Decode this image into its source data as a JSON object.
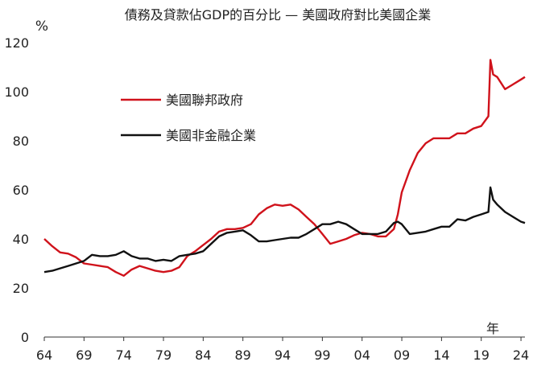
{
  "chart_data": {
    "type": "line",
    "title": "債務及貸款佔GDP的百分比 — 美國政府對比美國企業",
    "ylabel": "%",
    "xlabel": "年",
    "ylim": [
      0,
      120
    ],
    "xlim": [
      1964,
      2024.5
    ],
    "yticks": [
      "0",
      "20",
      "40",
      "60",
      "80",
      "100",
      "120"
    ],
    "yticks_values": [
      0,
      20,
      40,
      60,
      80,
      100,
      120
    ],
    "xticks": [
      "64",
      "69",
      "74",
      "79",
      "84",
      "89",
      "94",
      "99",
      "04",
      "09",
      "14",
      "19",
      "24"
    ],
    "xticks_values": [
      1964,
      1969,
      1974,
      1979,
      1984,
      1989,
      1994,
      1999,
      2004,
      2009,
      2014,
      2019,
      2024
    ],
    "grid": false,
    "legend_position": "upper-left",
    "series": [
      {
        "name": "美國聯邦政府",
        "color": "#d0121b",
        "x": [
          1964,
          1965,
          1966,
          1967,
          1968,
          1969,
          1970,
          1971,
          1972,
          1973,
          1974,
          1975,
          1976,
          1977,
          1978,
          1979,
          1980,
          1981,
          1982,
          1983,
          1984,
          1985,
          1986,
          1987,
          1988,
          1989,
          1990,
          1991,
          1992,
          1993,
          1994,
          1995,
          1996,
          1997,
          1998,
          1999,
          2000,
          2001,
          2002,
          2003,
          2004,
          2005,
          2006,
          2007,
          2008,
          2008.5,
          2009,
          2010,
          2011,
          2012,
          2013,
          2014,
          2015,
          2016,
          2017,
          2018,
          2019,
          2019.9,
          2020.15,
          2020.5,
          2021,
          2022,
          2023,
          2024,
          2024.5
        ],
        "values": [
          40,
          37,
          34.5,
          34,
          32.5,
          30,
          29.5,
          29,
          28.5,
          26.5,
          25,
          27.5,
          29,
          28,
          27,
          26.5,
          27,
          28.5,
          33,
          35,
          37.5,
          40,
          43,
          44,
          44,
          44.5,
          46,
          50,
          52.5,
          54,
          53.5,
          54,
          52,
          49,
          46,
          42,
          38,
          39,
          40,
          41.5,
          42.5,
          42,
          41,
          41,
          44,
          50,
          59,
          68,
          75,
          79,
          81,
          81,
          81,
          83,
          83,
          85,
          86,
          90,
          113,
          107,
          106,
          101,
          103,
          105,
          106
        ]
      },
      {
        "name": "美國非金融企業",
        "color": "#111111",
        "x": [
          1964,
          1965,
          1966,
          1967,
          1968,
          1969,
          1970,
          1971,
          1972,
          1973,
          1974,
          1975,
          1976,
          1977,
          1978,
          1979,
          1980,
          1981,
          1982,
          1983,
          1984,
          1985,
          1986,
          1987,
          1988,
          1989,
          1990,
          1991,
          1992,
          1993,
          1994,
          1995,
          1996,
          1997,
          1998,
          1999,
          2000,
          2001,
          2002,
          2003,
          2004,
          2005,
          2006,
          2007,
          2008,
          2008.5,
          2009,
          2010,
          2011,
          2012,
          2013,
          2014,
          2015,
          2016,
          2017,
          2018,
          2019,
          2019.9,
          2020.15,
          2020.5,
          2021,
          2022,
          2023,
          2024,
          2024.5
        ],
        "values": [
          26.5,
          27,
          28,
          29,
          30,
          31,
          33.5,
          33,
          33,
          33.5,
          35,
          33,
          32,
          32,
          31,
          31.5,
          31,
          33,
          33.5,
          34,
          35,
          38,
          41,
          42.5,
          43,
          43.5,
          41.5,
          39,
          39,
          39.5,
          40,
          40.5,
          40.5,
          42,
          44,
          46,
          46,
          47,
          46,
          44,
          42,
          42,
          42,
          43,
          46.5,
          47,
          46,
          42,
          42.5,
          43,
          44,
          45,
          45,
          48,
          47.5,
          49,
          50,
          51,
          61,
          56,
          54,
          51,
          49,
          47,
          46.5
        ]
      }
    ]
  }
}
